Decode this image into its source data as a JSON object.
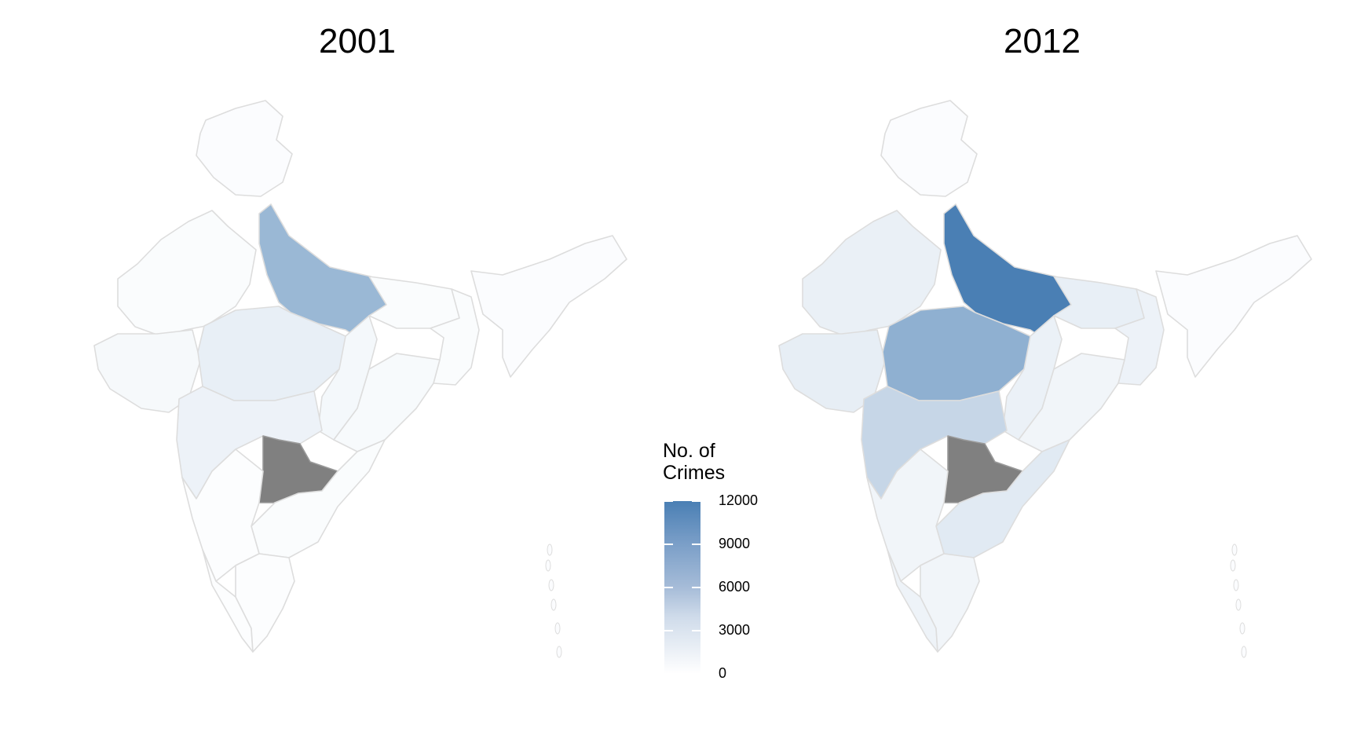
{
  "panels": [
    {
      "title": "2001"
    },
    {
      "title": "2012"
    }
  ],
  "legend": {
    "title_line1": "No. of",
    "title_line2": "Crimes",
    "labels": [
      "12000",
      "9000",
      "6000",
      "3000",
      "0"
    ],
    "range": [
      0,
      12000
    ],
    "colors": {
      "low": "#ffffff",
      "high": "#4a7fb4",
      "missing": "#808080",
      "border": "#dddddd"
    }
  },
  "chart_data": {
    "type": "choropleth",
    "region": "India (states)",
    "panels": [
      "2001",
      "2012"
    ],
    "legend_title": "No. of Crimes",
    "scale": {
      "min": 0,
      "max": 12000,
      "ticks": [
        0,
        3000,
        6000,
        9000,
        12000
      ]
    },
    "values": {
      "2001": {
        "Uttar Pradesh": 6700,
        "Madhya Pradesh": 1500,
        "Maharashtra": 1200,
        "Rajasthan": 300,
        "Gujarat": 600,
        "Bihar": 300,
        "Chhattisgarh": 700,
        "Odisha": 500,
        "West Bengal": 300,
        "Andhra Pradesh": 300,
        "Karnataka": 200,
        "Tamil Nadu": 200,
        "Kerala": 200,
        "Telangana": null
      },
      "2012": {
        "Uttar Pradesh": 12000,
        "Madhya Pradesh": 7400,
        "Maharashtra": 3800,
        "Rajasthan": 1400,
        "Gujarat": 1600,
        "Bihar": 1500,
        "Chhattisgarh": 1300,
        "Odisha": 900,
        "West Bengal": 1200,
        "Andhra Pradesh": 2000,
        "Karnataka": 900,
        "Tamil Nadu": 900,
        "Kerala": 1100,
        "Telangana": null
      }
    }
  }
}
